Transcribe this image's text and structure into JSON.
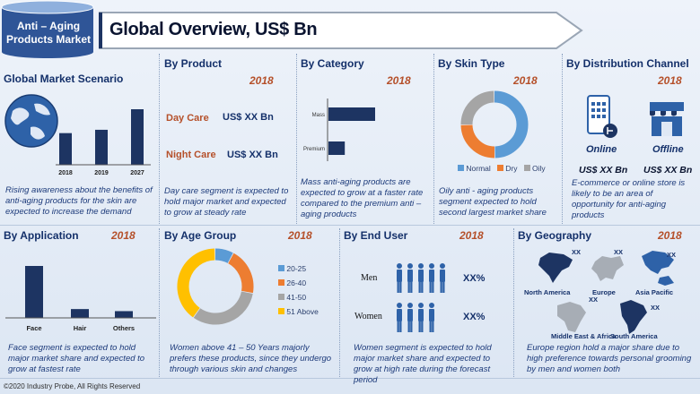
{
  "header": {
    "badge_title": "Anti – Aging Products Market",
    "banner_title": "Global Overview, US$ Bn"
  },
  "colors": {
    "navy": "#1d3462",
    "accent": "#b5502a",
    "donut_blue": "#5b9bd5",
    "donut_orange": "#ed7d31",
    "donut_gray": "#a5a5a5",
    "donut_yellow": "#ffc000"
  },
  "scenario": {
    "title": "Global Market Scenario",
    "description": "Rising awareness about the benefits of anti-aging products for the skin are expected to increase the demand",
    "chart_data": {
      "type": "bar",
      "categories": [
        "2018",
        "2019",
        "2027"
      ],
      "values": [
        0.57,
        0.63,
        1.0
      ]
    }
  },
  "product": {
    "title": "By Product",
    "year": "2018",
    "items": [
      {
        "label": "Day Care",
        "value": "US$ XX Bn"
      },
      {
        "label": "Night Care",
        "value": "US$ XX Bn"
      }
    ],
    "description": "Day care segment is expected to hold major market and expected to grow at steady rate"
  },
  "category": {
    "title": "By Category",
    "year": "2018",
    "description": "Mass anti-aging products are expected to grow at a faster rate compared to the premium anti – aging products",
    "chart_data": {
      "type": "bar",
      "orientation": "horizontal",
      "categories": [
        "Mass",
        "Premium"
      ],
      "values": [
        1.0,
        0.35
      ]
    }
  },
  "skin": {
    "title": "By Skin Type",
    "year": "2018",
    "description": "Oily anti - aging products segment expected to hold second largest market share",
    "chart_data": {
      "type": "pie",
      "donut": true,
      "categories": [
        "Normal",
        "Dry",
        "Oily"
      ],
      "values": [
        50,
        25,
        25
      ],
      "legend_position": "bottom"
    }
  },
  "distribution": {
    "title": "By Distribution Channel",
    "year": "2018",
    "online_label": "Online",
    "offline_label": "Offline",
    "online_value": "US$ XX Bn",
    "offline_value": "US$ XX Bn",
    "description": "E-commerce or online store is likely to be an area of opportunity for anti-aging products"
  },
  "application": {
    "title": "By Application",
    "year": "2018",
    "description": "Face segment is expected to hold major market share and expected to grow at fastest rate",
    "chart_data": {
      "type": "bar",
      "categories": [
        "Face",
        "Hair",
        "Others"
      ],
      "values": [
        1.0,
        0.17,
        0.13
      ]
    }
  },
  "age": {
    "title": "By Age Group",
    "year": "2018",
    "description": "Women above 41 – 50 Years majorly prefers these products, since they undergo through various skin and changes",
    "chart_data": {
      "type": "pie",
      "donut": true,
      "categories": [
        "20-25",
        "26-40",
        "41-50",
        "51 Above"
      ],
      "values": [
        8,
        20,
        32,
        40
      ],
      "legend_position": "right"
    }
  },
  "enduser": {
    "title": "By End User",
    "year": "2018",
    "men_label": "Men",
    "women_label": "Women",
    "men_value": "XX%",
    "women_value": "XX%",
    "description": "Women segment is expected to hold major market share and expected to grow at high rate during the forecast period"
  },
  "geography": {
    "title": "By Geography",
    "year": "2018",
    "regions": [
      {
        "name": "North America",
        "value": "XX"
      },
      {
        "name": "Europe",
        "value": "XX"
      },
      {
        "name": "Asia Pacific",
        "value": "XX"
      },
      {
        "name": "Middle East & Africa",
        "value": "XX"
      },
      {
        "name": "South America",
        "value": "XX"
      }
    ],
    "description": "Europe region hold a major share due to high preference towards personal grooming by men and women both"
  },
  "footer": {
    "copyright": "©2020 Industry Probe, All Rights Reserved"
  }
}
